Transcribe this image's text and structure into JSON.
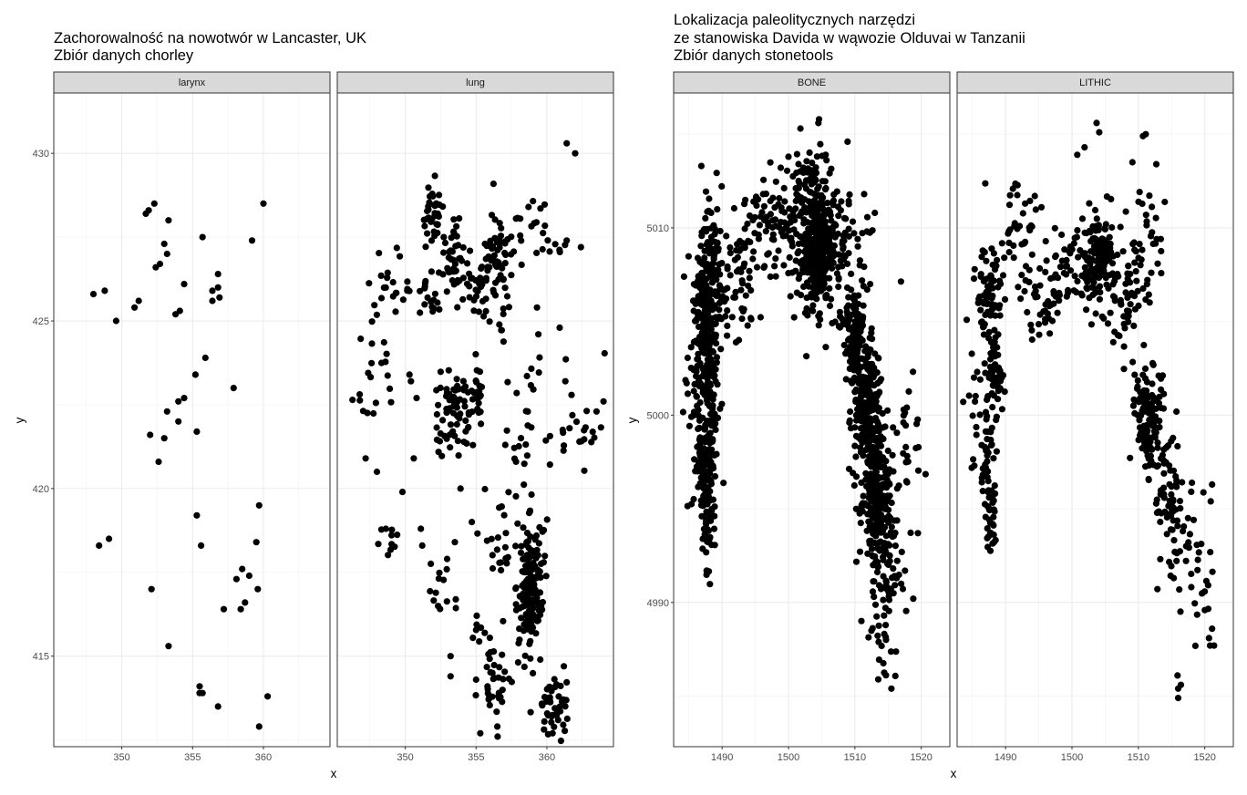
{
  "chart_data": [
    {
      "type": "scatter",
      "title_lines": [
        "Zachorowalność na nowotwór w Lancaster, UK",
        "Zbiór danych chorley"
      ],
      "xlabel": "x",
      "ylabel": "y",
      "xlim": [
        345.2,
        364.7
      ],
      "ylim": [
        412.3,
        431.8
      ],
      "x_ticks": [
        350,
        355,
        360
      ],
      "y_ticks": [
        415,
        420,
        425,
        430
      ],
      "grid": true,
      "point_color": "#000000",
      "seed": 1234,
      "panels": [
        {
          "strip": "larynx",
          "points": [
            [
              348.0,
              425.8
            ],
            [
              348.8,
              425.9
            ],
            [
              349.6,
              425.0
            ],
            [
              350.9,
              425.4
            ],
            [
              351.2,
              425.6
            ],
            [
              351.7,
              428.2
            ],
            [
              351.9,
              428.3
            ],
            [
              352.3,
              428.5
            ],
            [
              352.4,
              426.6
            ],
            [
              352.7,
              426.7
            ],
            [
              353.0,
              427.3
            ],
            [
              353.2,
              427.0
            ],
            [
              353.3,
              428.0
            ],
            [
              353.8,
              425.2
            ],
            [
              354.1,
              425.3
            ],
            [
              354.4,
              426.1
            ],
            [
              356.4,
              425.6
            ],
            [
              356.4,
              425.9
            ],
            [
              356.8,
              426.4
            ],
            [
              356.9,
              425.7
            ],
            [
              356.8,
              426.0
            ],
            [
              355.7,
              427.5
            ],
            [
              359.2,
              427.4
            ],
            [
              360.0,
              428.5
            ],
            [
              355.2,
              423.4
            ],
            [
              355.9,
              423.9
            ],
            [
              357.9,
              423.0
            ],
            [
              354.0,
              422.6
            ],
            [
              354.4,
              422.7
            ],
            [
              353.2,
              422.3
            ],
            [
              354.0,
              422.0
            ],
            [
              352.0,
              421.6
            ],
            [
              353.0,
              421.5
            ],
            [
              355.3,
              421.7
            ],
            [
              352.6,
              420.8
            ],
            [
              348.4,
              418.3
            ],
            [
              349.1,
              418.5
            ],
            [
              355.3,
              419.2
            ],
            [
              355.6,
              418.3
            ],
            [
              359.7,
              419.5
            ],
            [
              359.5,
              418.4
            ],
            [
              358.5,
              417.6
            ],
            [
              359.0,
              417.4
            ],
            [
              358.1,
              417.3
            ],
            [
              359.6,
              417.0
            ],
            [
              358.7,
              416.6
            ],
            [
              357.2,
              416.4
            ],
            [
              358.4,
              416.4
            ],
            [
              352.1,
              417.0
            ],
            [
              353.3,
              415.3
            ],
            [
              355.5,
              414.1
            ],
            [
              355.5,
              413.9
            ],
            [
              355.7,
              413.9
            ],
            [
              356.8,
              413.5
            ],
            [
              359.7,
              412.9
            ],
            [
              360.3,
              413.8
            ]
          ]
        },
        {
          "strip": "lung",
          "clusters": [
            {
              "cx": 351.9,
              "cy": 428.1,
              "sx": 0.4,
              "sy": 0.5,
              "n": 35
            },
            {
              "cx": 353.4,
              "cy": 427.0,
              "sx": 0.5,
              "sy": 0.6,
              "n": 45
            },
            {
              "cx": 355.5,
              "cy": 426.1,
              "sx": 0.7,
              "sy": 0.4,
              "n": 40
            },
            {
              "cx": 356.5,
              "cy": 426.9,
              "sx": 0.5,
              "sy": 0.8,
              "n": 45
            },
            {
              "cx": 358.5,
              "cy": 427.3,
              "sx": 1.3,
              "sy": 0.5,
              "n": 30
            },
            {
              "cx": 349.0,
              "cy": 425.9,
              "sx": 1.1,
              "sy": 0.5,
              "n": 25
            },
            {
              "cx": 351.8,
              "cy": 425.6,
              "sx": 0.7,
              "sy": 0.4,
              "n": 15
            },
            {
              "cx": 348.2,
              "cy": 424.0,
              "sx": 0.6,
              "sy": 0.9,
              "n": 10
            },
            {
              "cx": 353.6,
              "cy": 422.2,
              "sx": 0.8,
              "sy": 0.6,
              "n": 70
            },
            {
              "cx": 355.2,
              "cy": 423.0,
              "sx": 0.3,
              "sy": 0.5,
              "n": 18
            },
            {
              "cx": 347.0,
              "cy": 422.8,
              "sx": 0.5,
              "sy": 0.4,
              "n": 8
            },
            {
              "cx": 358.5,
              "cy": 421.4,
              "sx": 0.8,
              "sy": 1.2,
              "n": 28
            },
            {
              "cx": 362.8,
              "cy": 421.8,
              "sx": 0.7,
              "sy": 0.5,
              "n": 10
            },
            {
              "cx": 358.8,
              "cy": 417.1,
              "sx": 0.45,
              "sy": 1.0,
              "n": 160
            },
            {
              "cx": 356.5,
              "cy": 418.4,
              "sx": 0.8,
              "sy": 0.8,
              "n": 22
            },
            {
              "cx": 352.5,
              "cy": 416.9,
              "sx": 0.5,
              "sy": 0.5,
              "n": 14
            },
            {
              "cx": 355.7,
              "cy": 415.4,
              "sx": 0.6,
              "sy": 0.6,
              "n": 12
            },
            {
              "cx": 356.5,
              "cy": 414.1,
              "sx": 0.6,
              "sy": 0.5,
              "n": 30
            },
            {
              "cx": 360.4,
              "cy": 413.5,
              "sx": 0.6,
              "sy": 0.5,
              "n": 45
            },
            {
              "cx": 348.9,
              "cy": 418.6,
              "sx": 0.4,
              "sy": 0.4,
              "n": 10
            },
            {
              "cx": 362.0,
              "cy": 422.5,
              "sx": 1.5,
              "sy": 1.2,
              "n": 12
            }
          ],
          "points": [
            [
              361.4,
              430.3
            ],
            [
              362.0,
              430.0
            ],
            [
              358.7,
              428.4
            ],
            [
              362.4,
              427.2
            ],
            [
              361.4,
              427.4
            ],
            [
              364.0,
              422.6
            ],
            [
              363.5,
              422.3
            ],
            [
              362.3,
              421.4
            ],
            [
              361.6,
              421.8
            ],
            [
              361.3,
              423.2
            ],
            [
              360.9,
              424.8
            ],
            [
              359.3,
              425.4
            ],
            [
              359.4,
              424.6
            ],
            [
              350.4,
              423.2
            ],
            [
              350.3,
              423.4
            ],
            [
              350.8,
              422.7
            ],
            [
              350.6,
              420.9
            ],
            [
              349.8,
              419.9
            ],
            [
              347.2,
              420.9
            ],
            [
              348.0,
              420.5
            ],
            [
              351.1,
              418.8
            ],
            [
              351.2,
              418.3
            ],
            [
              353.9,
              420.0
            ],
            [
              353.5,
              418.4
            ],
            [
              354.7,
              419.0
            ],
            [
              361.2,
              414.7
            ],
            [
              360.4,
              412.7
            ],
            [
              355.3,
              412.7
            ],
            [
              356.5,
              412.9
            ],
            [
              355.0,
              414.3
            ],
            [
              353.2,
              415.0
            ],
            [
              353.2,
              414.4
            ]
          ]
        }
      ]
    },
    {
      "type": "scatter",
      "title_lines": [
        "Lokalizacja paleolitycznych narzędzi",
        "ze stanowiska Davida w wąwozie Olduvai w Tanzanii",
        "Zbiór danych stonetools"
      ],
      "xlabel": "x",
      "ylabel": "y",
      "xlim": [
        1482.7,
        1524.3
      ],
      "ylim": [
        4982.3,
        5017.2
      ],
      "x_ticks": [
        1490,
        1500,
        1510,
        1520
      ],
      "y_ticks": [
        4990,
        5000,
        5010
      ],
      "grid": true,
      "point_color": "#000000",
      "seed": 9876,
      "panels": [
        {
          "strip": "BONE",
          "clusters": [
            {
              "cx": 1487.8,
              "cy": 5007.0,
              "sx": 1.2,
              "sy": 2.2,
              "n": 200
            },
            {
              "cx": 1487.4,
              "cy": 5002.5,
              "sx": 1.1,
              "sy": 2.0,
              "n": 150
            },
            {
              "cx": 1487.6,
              "cy": 4997.5,
              "sx": 0.9,
              "sy": 2.0,
              "n": 110
            },
            {
              "cx": 1488.0,
              "cy": 4994.2,
              "sx": 0.6,
              "sy": 1.2,
              "n": 40
            },
            {
              "cx": 1493.0,
              "cy": 5007.4,
              "sx": 1.6,
              "sy": 1.8,
              "n": 60
            },
            {
              "cx": 1497.8,
              "cy": 5010.3,
              "sx": 1.8,
              "sy": 1.4,
              "n": 70
            },
            {
              "cx": 1504.5,
              "cy": 5008.8,
              "sx": 1.5,
              "sy": 1.7,
              "n": 380
            },
            {
              "cx": 1502.5,
              "cy": 5012.2,
              "sx": 1.3,
              "sy": 1.0,
              "n": 45
            },
            {
              "cx": 1508.2,
              "cy": 5009.5,
              "sx": 1.6,
              "sy": 1.1,
              "n": 40
            },
            {
              "cx": 1509.8,
              "cy": 5004.5,
              "sx": 0.9,
              "sy": 1.5,
              "n": 130
            },
            {
              "cx": 1511.8,
              "cy": 5000.6,
              "sx": 1.1,
              "sy": 1.6,
              "n": 180
            },
            {
              "cx": 1513.0,
              "cy": 4997.0,
              "sx": 1.2,
              "sy": 1.7,
              "n": 200
            },
            {
              "cx": 1513.8,
              "cy": 4993.6,
              "sx": 1.4,
              "sy": 1.5,
              "n": 90
            },
            {
              "cx": 1514.5,
              "cy": 4990.0,
              "sx": 1.5,
              "sy": 1.5,
              "n": 45
            },
            {
              "cx": 1515.0,
              "cy": 4986.8,
              "sx": 0.6,
              "sy": 0.8,
              "n": 8
            },
            {
              "cx": 1517.8,
              "cy": 4998.0,
              "sx": 1.2,
              "sy": 3.0,
              "n": 30
            }
          ],
          "points": [
            [
              1504.6,
              5015.8
            ],
            [
              1504.5,
              5015.6
            ],
            [
              1501.8,
              5015.3
            ],
            [
              1508.9,
              5014.6
            ],
            [
              1500.0,
              5013.8
            ],
            [
              1505.6,
              5013.9
            ],
            [
              1511.4,
              5011.8
            ],
            [
              1513.0,
              5010.8
            ],
            [
              1515.5,
              4985.4
            ],
            [
              1519.5,
              4993.7
            ],
            [
              1518.8,
              4990.2
            ],
            [
              1512.3,
              5007.0
            ],
            [
              1511.8,
              5009.8
            ]
          ]
        },
        {
          "strip": "LITHIC",
          "clusters": [
            {
              "cx": 1487.5,
              "cy": 5006.8,
              "sx": 1.0,
              "sy": 1.6,
              "n": 80
            },
            {
              "cx": 1488.4,
              "cy": 5002.4,
              "sx": 0.7,
              "sy": 1.0,
              "n": 60
            },
            {
              "cx": 1487.5,
              "cy": 4997.0,
              "sx": 0.6,
              "sy": 1.5,
              "n": 45
            },
            {
              "cx": 1487.8,
              "cy": 4994.4,
              "sx": 0.4,
              "sy": 0.8,
              "n": 20
            },
            {
              "cx": 1485.6,
              "cy": 5000.5,
              "sx": 0.8,
              "sy": 2.0,
              "n": 18
            },
            {
              "cx": 1492.2,
              "cy": 5009.5,
              "sx": 1.5,
              "sy": 1.6,
              "n": 40
            },
            {
              "cx": 1495.5,
              "cy": 5006.0,
              "sx": 1.3,
              "sy": 1.2,
              "n": 30
            },
            {
              "cx": 1503.8,
              "cy": 5008.4,
              "sx": 1.3,
              "sy": 1.2,
              "n": 140
            },
            {
              "cx": 1499.0,
              "cy": 5008.2,
              "sx": 1.3,
              "sy": 1.3,
              "n": 35
            },
            {
              "cx": 1508.0,
              "cy": 5006.2,
              "sx": 1.5,
              "sy": 1.6,
              "n": 60
            },
            {
              "cx": 1511.5,
              "cy": 5009.0,
              "sx": 1.5,
              "sy": 1.5,
              "n": 30
            },
            {
              "cx": 1511.5,
              "cy": 4999.8,
              "sx": 1.2,
              "sy": 1.2,
              "n": 130
            },
            {
              "cx": 1514.6,
              "cy": 4995.6,
              "sx": 1.2,
              "sy": 1.6,
              "n": 60
            },
            {
              "cx": 1517.5,
              "cy": 4993.0,
              "sx": 1.5,
              "sy": 2.0,
              "n": 30
            },
            {
              "cx": 1519.6,
              "cy": 4990.5,
              "sx": 1.0,
              "sy": 1.8,
              "n": 12
            }
          ],
          "points": [
            [
              1503.7,
              5015.6
            ],
            [
              1504.1,
              5015.1
            ],
            [
              1510.7,
              5014.9
            ],
            [
              1511.1,
              5015.0
            ],
            [
              1501.9,
              5014.3
            ],
            [
              1500.8,
              5013.9
            ],
            [
              1509.1,
              5013.5
            ],
            [
              1512.7,
              5013.4
            ],
            [
              1516.0,
              4985.4
            ],
            [
              1516.0,
              4984.9
            ],
            [
              1515.9,
              4986.1
            ],
            [
              1516.4,
              4985.6
            ],
            [
              1521.4,
              4987.7
            ],
            [
              1520.8,
              4987.7
            ],
            [
              1521.1,
              4988.6
            ],
            [
              1520.9,
              4995.4
            ],
            [
              1521.1,
              4996.3
            ],
            [
              1495.4,
              5011.1
            ],
            [
              1494.4,
              5011.7
            ],
            [
              1485.3,
              4997.3
            ]
          ]
        }
      ]
    }
  ]
}
